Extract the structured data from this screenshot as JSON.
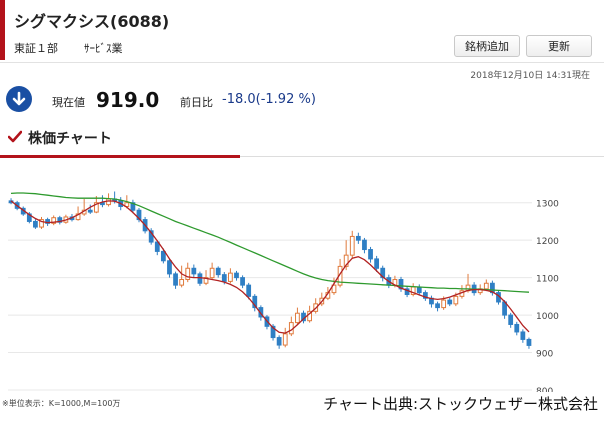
{
  "header": {
    "title": "シグマクシス(6088)",
    "market": "東証１部",
    "sector": "ｻｰﾋﾞｽ業",
    "buttons": {
      "add_watch": "銘柄追加",
      "refresh": "更新"
    }
  },
  "quote": {
    "timestamp": "2018年12月10日 14:31現在",
    "price_label": "現在値",
    "price": "919.0",
    "change_label": "前日比",
    "change": "-18.0(-1.92 %)",
    "direction_icon": "down-arrow-icon"
  },
  "section": {
    "title": "株価チャート"
  },
  "chart_data": {
    "type": "candlestick",
    "ylim": [
      800,
      1350
    ],
    "yticks": [
      1300,
      1200,
      1100,
      1000,
      900,
      800
    ],
    "grid": true,
    "colors": {
      "up": "#e07a3c",
      "down": "#2f7fc4",
      "ma_short": "#b22222",
      "ma_long": "#2e9a2e"
    },
    "candles": [
      [
        1305,
        1300,
        1312,
        1296
      ],
      [
        1300,
        1285,
        1305,
        1280
      ],
      [
        1285,
        1270,
        1290,
        1265
      ],
      [
        1270,
        1250,
        1275,
        1245
      ],
      [
        1250,
        1235,
        1256,
        1230
      ],
      [
        1235,
        1255,
        1262,
        1230
      ],
      [
        1255,
        1245,
        1260,
        1238
      ],
      [
        1245,
        1260,
        1266,
        1240
      ],
      [
        1260,
        1248,
        1265,
        1242
      ],
      [
        1248,
        1262,
        1268,
        1244
      ],
      [
        1262,
        1255,
        1270,
        1250
      ],
      [
        1255,
        1270,
        1290,
        1252
      ],
      [
        1270,
        1280,
        1310,
        1265
      ],
      [
        1280,
        1275,
        1295,
        1270
      ],
      [
        1275,
        1300,
        1318,
        1272
      ],
      [
        1300,
        1295,
        1320,
        1288
      ],
      [
        1295,
        1310,
        1325,
        1290
      ],
      [
        1310,
        1305,
        1330,
        1298
      ],
      [
        1305,
        1290,
        1315,
        1280
      ],
      [
        1290,
        1300,
        1320,
        1285
      ],
      [
        1300,
        1280,
        1308,
        1272
      ],
      [
        1280,
        1255,
        1286,
        1248
      ],
      [
        1255,
        1225,
        1262,
        1218
      ],
      [
        1225,
        1195,
        1232,
        1188
      ],
      [
        1195,
        1170,
        1200,
        1160
      ],
      [
        1170,
        1145,
        1178,
        1138
      ],
      [
        1145,
        1110,
        1150,
        1100
      ],
      [
        1110,
        1080,
        1116,
        1070
      ],
      [
        1080,
        1095,
        1132,
        1074
      ],
      [
        1095,
        1125,
        1140,
        1088
      ],
      [
        1125,
        1110,
        1135,
        1100
      ],
      [
        1110,
        1085,
        1116,
        1078
      ],
      [
        1085,
        1100,
        1120,
        1080
      ],
      [
        1100,
        1125,
        1140,
        1094
      ],
      [
        1125,
        1108,
        1130,
        1100
      ],
      [
        1108,
        1090,
        1115,
        1082
      ],
      [
        1090,
        1112,
        1125,
        1085
      ],
      [
        1112,
        1100,
        1118,
        1092
      ],
      [
        1100,
        1080,
        1106,
        1072
      ],
      [
        1080,
        1050,
        1086,
        1042
      ],
      [
        1050,
        1020,
        1056,
        1010
      ],
      [
        1020,
        995,
        1026,
        985
      ],
      [
        995,
        970,
        1000,
        962
      ],
      [
        970,
        940,
        976,
        932
      ],
      [
        940,
        920,
        946,
        910
      ],
      [
        920,
        950,
        966,
        914
      ],
      [
        950,
        980,
        996,
        944
      ],
      [
        980,
        1005,
        1020,
        974
      ],
      [
        1005,
        985,
        1012,
        978
      ],
      [
        985,
        1010,
        1025,
        980
      ],
      [
        1010,
        1030,
        1045,
        1004
      ],
      [
        1030,
        1045,
        1060,
        1024
      ],
      [
        1045,
        1060,
        1075,
        1040
      ],
      [
        1060,
        1080,
        1100,
        1054
      ],
      [
        1080,
        1130,
        1150,
        1074
      ],
      [
        1130,
        1160,
        1200,
        1120
      ],
      [
        1160,
        1210,
        1225,
        1150
      ],
      [
        1210,
        1200,
        1220,
        1190
      ],
      [
        1200,
        1175,
        1206,
        1165
      ],
      [
        1175,
        1150,
        1182,
        1140
      ],
      [
        1150,
        1125,
        1158,
        1115
      ],
      [
        1125,
        1100,
        1132,
        1090
      ],
      [
        1100,
        1080,
        1108,
        1072
      ],
      [
        1080,
        1095,
        1105,
        1074
      ],
      [
        1095,
        1070,
        1102,
        1062
      ],
      [
        1070,
        1055,
        1076,
        1048
      ],
      [
        1055,
        1075,
        1085,
        1050
      ],
      [
        1075,
        1060,
        1082,
        1052
      ],
      [
        1060,
        1045,
        1066,
        1038
      ],
      [
        1045,
        1030,
        1052,
        1020
      ],
      [
        1030,
        1020,
        1036,
        1010
      ],
      [
        1020,
        1040,
        1050,
        1014
      ],
      [
        1040,
        1030,
        1046,
        1024
      ],
      [
        1030,
        1050,
        1060,
        1024
      ],
      [
        1050,
        1065,
        1080,
        1044
      ],
      [
        1065,
        1080,
        1110,
        1060
      ],
      [
        1080,
        1060,
        1088,
        1052
      ],
      [
        1060,
        1070,
        1082,
        1054
      ],
      [
        1070,
        1085,
        1095,
        1064
      ],
      [
        1085,
        1060,
        1092,
        1052
      ],
      [
        1060,
        1035,
        1066,
        1028
      ],
      [
        1035,
        1000,
        1040,
        990
      ],
      [
        1000,
        975,
        1006,
        966
      ],
      [
        975,
        955,
        982,
        946
      ],
      [
        955,
        935,
        962,
        926
      ],
      [
        935,
        919,
        940,
        910
      ]
    ],
    "ma_short": [
      1305,
      1292,
      1280,
      1268,
      1258,
      1250,
      1247,
      1248,
      1250,
      1254,
      1260,
      1268,
      1278,
      1288,
      1296,
      1302,
      1305,
      1304,
      1298,
      1288,
      1274,
      1258,
      1240,
      1220,
      1198,
      1175,
      1150,
      1128,
      1110,
      1102,
      1100,
      1100,
      1098,
      1095,
      1092,
      1088,
      1082,
      1074,
      1062,
      1046,
      1026,
      1004,
      984,
      966,
      954,
      952,
      960,
      974,
      990,
      1004,
      1018,
      1036,
      1058,
      1084,
      1110,
      1134,
      1152,
      1156,
      1148,
      1134,
      1118,
      1102,
      1090,
      1080,
      1072,
      1066,
      1060,
      1054,
      1048,
      1044,
      1042,
      1044,
      1048,
      1054,
      1060,
      1066,
      1068,
      1068,
      1066,
      1062,
      1052,
      1036,
      1016,
      994,
      972,
      955
    ],
    "ma_long": [
      1325,
      1326,
      1326,
      1325,
      1324,
      1322,
      1320,
      1318,
      1316,
      1314,
      1313,
      1312,
      1312,
      1312,
      1312,
      1312,
      1311,
      1310,
      1307,
      1303,
      1298,
      1292,
      1285,
      1278,
      1271,
      1264,
      1257,
      1250,
      1244,
      1238,
      1232,
      1226,
      1220,
      1214,
      1208,
      1201,
      1194,
      1187,
      1180,
      1173,
      1166,
      1159,
      1152,
      1145,
      1138,
      1131,
      1124,
      1117,
      1110,
      1104,
      1099,
      1095,
      1092,
      1090,
      1088,
      1087,
      1086,
      1085,
      1084,
      1083,
      1082,
      1081,
      1080,
      1079,
      1078,
      1077,
      1076,
      1075,
      1074,
      1073,
      1072,
      1072,
      1071,
      1071,
      1070,
      1070,
      1069,
      1069,
      1068,
      1067,
      1066,
      1065,
      1064,
      1063,
      1062,
      1061
    ]
  },
  "footer": {
    "unit_note": "※単位表示：K=1000,M=100万",
    "source": "チャート出典:ストックウェザー株式会社"
  }
}
